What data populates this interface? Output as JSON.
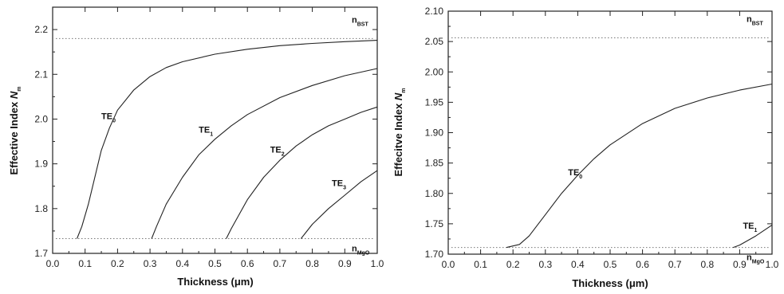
{
  "chart_data": [
    {
      "type": "line",
      "xlabel": "Thickness (μm)",
      "ylabel_prefix": "Effective Index ",
      "ylabel_symbol": "N",
      "ylabel_sub": "m",
      "xlim": [
        0.0,
        1.0
      ],
      "ylim": [
        1.7,
        2.25
      ],
      "xticks": [
        "0.0",
        "0.1",
        "0.2",
        "0.3",
        "0.4",
        "0.5",
        "0.6",
        "0.7",
        "0.8",
        "0.9",
        "1.0"
      ],
      "yticks": [
        "1.7",
        "1.8",
        "1.9",
        "2.0",
        "2.1",
        "2.2"
      ],
      "reference_lines": [
        {
          "label_main": "n",
          "label_sub": "BST",
          "y": 2.18,
          "style": "dotted",
          "label_position": "top-right"
        },
        {
          "label_main": "n",
          "label_sub": "MgO",
          "y": 1.733,
          "style": "dotted",
          "label_position": "bottom-right"
        }
      ],
      "series": [
        {
          "label_main": "TE",
          "label_sub": "0",
          "label_at": [
            0.15,
            2.0
          ],
          "x": [
            0.075,
            0.09,
            0.11,
            0.13,
            0.15,
            0.175,
            0.2,
            0.25,
            0.3,
            0.35,
            0.4,
            0.5,
            0.6,
            0.7,
            0.8,
            0.9,
            1.0
          ],
          "y": [
            1.733,
            1.76,
            1.81,
            1.87,
            1.93,
            1.98,
            2.02,
            2.065,
            2.095,
            2.115,
            2.128,
            2.145,
            2.156,
            2.164,
            2.169,
            2.173,
            2.176
          ]
        },
        {
          "label_main": "TE",
          "label_sub": "1",
          "label_at": [
            0.45,
            1.97
          ],
          "x": [
            0.305,
            0.32,
            0.35,
            0.4,
            0.45,
            0.5,
            0.55,
            0.6,
            0.7,
            0.8,
            0.9,
            1.0
          ],
          "y": [
            1.733,
            1.76,
            1.81,
            1.87,
            1.92,
            1.955,
            1.985,
            2.01,
            2.048,
            2.075,
            2.097,
            2.113
          ]
        },
        {
          "label_main": "TE",
          "label_sub": "2",
          "label_at": [
            0.67,
            1.925
          ],
          "x": [
            0.535,
            0.55,
            0.6,
            0.65,
            0.7,
            0.75,
            0.8,
            0.85,
            0.9,
            0.95,
            1.0
          ],
          "y": [
            1.733,
            1.755,
            1.82,
            1.87,
            1.908,
            1.94,
            1.965,
            1.985,
            2.0,
            2.015,
            2.027
          ]
        },
        {
          "label_main": "TE",
          "label_sub": "3",
          "label_at": [
            0.86,
            1.85
          ],
          "x": [
            0.765,
            0.8,
            0.85,
            0.9,
            0.95,
            1.0
          ],
          "y": [
            1.733,
            1.765,
            1.8,
            1.83,
            1.86,
            1.885
          ]
        }
      ]
    },
    {
      "type": "line",
      "xlabel": "Thickness (μm)",
      "ylabel_prefix": "Effecitve Index ",
      "ylabel_symbol": "N",
      "ylabel_sub": "m",
      "xlim": [
        0.0,
        1.0
      ],
      "ylim": [
        1.7,
        2.1
      ],
      "xticks": [
        "0.0",
        "0.1",
        "0.2",
        "0.3",
        "0.4",
        "0.5",
        "0.6",
        "0.7",
        "0.8",
        "0.9",
        "1.0"
      ],
      "yticks": [
        "1.70",
        "1.75",
        "1.80",
        "1.85",
        "1.90",
        "1.95",
        "2.00",
        "2.05",
        "2.10"
      ],
      "reference_lines": [
        {
          "label_main": "n",
          "label_sub": "BST",
          "y": 2.056,
          "style": "dotted",
          "label_position": "top-right"
        },
        {
          "label_main": "n",
          "label_sub": "MgO",
          "y": 1.711,
          "style": "dotted",
          "label_position": "bottom-right"
        }
      ],
      "series": [
        {
          "label_main": "TE",
          "label_sub": "0",
          "label_at": [
            0.37,
            1.83
          ],
          "x": [
            0.18,
            0.22,
            0.25,
            0.3,
            0.35,
            0.4,
            0.45,
            0.5,
            0.6,
            0.7,
            0.8,
            0.9,
            1.0
          ],
          "y": [
            1.711,
            1.716,
            1.73,
            1.765,
            1.8,
            1.83,
            1.857,
            1.88,
            1.915,
            1.94,
            1.957,
            1.97,
            1.98
          ]
        },
        {
          "label_main": "TE",
          "label_sub": "1",
          "label_at": [
            0.91,
            1.742
          ],
          "x": [
            0.88,
            0.9,
            0.95,
            1.0
          ],
          "y": [
            1.711,
            1.715,
            1.73,
            1.748
          ]
        }
      ]
    }
  ]
}
